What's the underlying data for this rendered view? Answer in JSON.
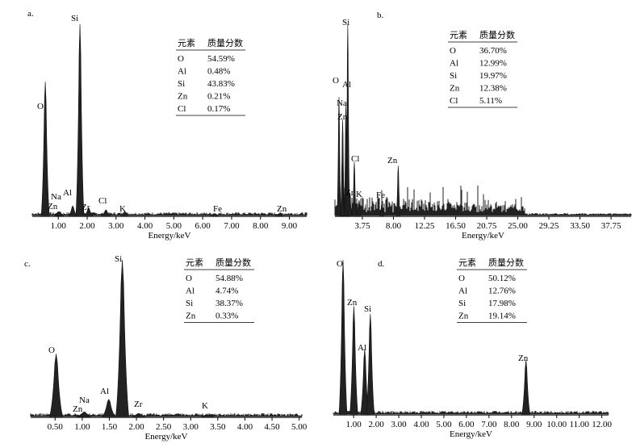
{
  "chart_data": [
    {
      "type": "line",
      "panel": "a.",
      "xlabel": "Energy/keV",
      "x_ticks": [
        "1.00",
        "2.00",
        "3.00",
        "4.00",
        "5.00",
        "6.00",
        "7.00",
        "8.00",
        "9.00"
      ],
      "tick_values": [
        1,
        2,
        3,
        4,
        5,
        6,
        7,
        8,
        9
      ],
      "xlim": [
        0.1,
        9.6
      ],
      "grid": false,
      "legend": "none",
      "peaks": [
        {
          "label": "O",
          "x": 0.55,
          "height": 0.7
        },
        {
          "label": "Zn",
          "x": 1.0,
          "height": 0.02
        },
        {
          "label": "Na",
          "x": 1.05,
          "height": 0.02
        },
        {
          "label": "Al",
          "x": 1.5,
          "height": 0.05
        },
        {
          "label": "Si",
          "x": 1.75,
          "height": 1.0
        },
        {
          "label": "Zr",
          "x": 2.05,
          "height": 0.04
        },
        {
          "label": "Cl",
          "x": 2.65,
          "height": 0.03
        },
        {
          "label": "K",
          "x": 3.3,
          "height": 0.02
        },
        {
          "label": "Fe",
          "x": 6.4,
          "height": 0.01
        },
        {
          "label": "Zn",
          "x": 8.65,
          "height": 0.01
        }
      ],
      "table": {
        "headers": [
          "元素",
          "质量分数"
        ],
        "rows": [
          [
            "O",
            "54.59%"
          ],
          [
            "Al",
            "0.48%"
          ],
          [
            "Si",
            "43.83%"
          ],
          [
            "Zn",
            "0.21%"
          ],
          [
            "Cl",
            "0.17%"
          ]
        ]
      }
    },
    {
      "type": "line",
      "panel": "b.",
      "xlabel": "Energy/keV",
      "x_ticks": [
        "3.75",
        "8.00",
        "12.25",
        "16.50",
        "20.75",
        "25.00",
        "29.25",
        "33.50",
        "37.75"
      ],
      "tick_values": [
        3.75,
        8.0,
        12.25,
        16.5,
        20.75,
        25.0,
        29.25,
        33.5,
        37.75
      ],
      "xlim": [
        0.0,
        40.5
      ],
      "grid": false,
      "legend": "none",
      "peaks": [
        {
          "label": "O",
          "x": 0.55,
          "height": 0.62
        },
        {
          "label": "Na",
          "x": 1.05,
          "height": 0.5
        },
        {
          "label": "Zn",
          "x": 1.0,
          "height": 0.3
        },
        {
          "label": "Al",
          "x": 1.5,
          "height": 0.58
        },
        {
          "label": "Si",
          "x": 1.75,
          "height": 1.0
        },
        {
          "label": "Cl",
          "x": 2.65,
          "height": 0.28
        },
        {
          "label": "Zr",
          "x": 2.05,
          "height": 0.12
        },
        {
          "label": "K",
          "x": 3.3,
          "height": 0.08
        },
        {
          "label": "Fe",
          "x": 6.4,
          "height": 0.06
        },
        {
          "label": "Zn",
          "x": 8.65,
          "height": 0.26
        }
      ],
      "table": {
        "headers": [
          "元素",
          "质量分数"
        ],
        "rows": [
          [
            "O",
            "36.70%"
          ],
          [
            "Al",
            "12.99%"
          ],
          [
            "Si",
            "19.97%"
          ],
          [
            "Zn",
            "12.38%"
          ],
          [
            "Cl",
            "5.11%"
          ]
        ]
      }
    },
    {
      "type": "line",
      "panel": "c.",
      "xlabel": "Energy/keV",
      "x_ticks": [
        "0.50",
        "1.00",
        "1.50",
        "2.00",
        "2.50",
        "3.00",
        "3.50",
        "4.00",
        "4.50",
        "5.00"
      ],
      "tick_values": [
        0.5,
        1.0,
        1.5,
        2.0,
        2.5,
        3.0,
        3.5,
        4.0,
        4.5,
        5.0
      ],
      "xlim": [
        0.05,
        5.05
      ],
      "grid": false,
      "legend": "none",
      "peaks": [
        {
          "label": "O",
          "x": 0.52,
          "height": 0.4
        },
        {
          "label": "Zn",
          "x": 1.01,
          "height": 0.02
        },
        {
          "label": "Na",
          "x": 1.04,
          "height": 0.03
        },
        {
          "label": "Al",
          "x": 1.49,
          "height": 0.11
        },
        {
          "label": "Si",
          "x": 1.74,
          "height": 1.0
        },
        {
          "label": "Zr",
          "x": 2.04,
          "height": 0.02
        },
        {
          "label": "K",
          "x": 3.31,
          "height": 0.01
        }
      ],
      "table": {
        "headers": [
          "元素",
          "质量分数"
        ],
        "rows": [
          [
            "O",
            "54.88%"
          ],
          [
            "Al",
            "4.74%"
          ],
          [
            "Si",
            "38.37%"
          ],
          [
            "Zn",
            "0.33%"
          ]
        ]
      }
    },
    {
      "type": "line",
      "panel": "d.",
      "xlabel": "Energy/keV",
      "x_ticks": [
        "1.00",
        "2.00",
        "3.00",
        "4.00",
        "5.00",
        "6.00",
        "7.00",
        "8.00",
        "9.00",
        "10.00",
        "11.00",
        "12.00"
      ],
      "tick_values": [
        1,
        2,
        3,
        4,
        5,
        6,
        7,
        8,
        9,
        10,
        11,
        12
      ],
      "xlim": [
        0.1,
        12.3
      ],
      "grid": false,
      "legend": "none",
      "peaks": [
        {
          "label": "O",
          "x": 0.53,
          "height": 1.0
        },
        {
          "label": "Zn",
          "x": 1.01,
          "height": 0.7
        },
        {
          "label": "Al",
          "x": 1.49,
          "height": 0.42
        },
        {
          "label": "Si",
          "x": 1.74,
          "height": 0.65
        },
        {
          "label": "Zn",
          "x": 8.64,
          "height": 0.35
        }
      ],
      "table": {
        "headers": [
          "元素",
          "质量分数"
        ],
        "rows": [
          [
            "O",
            "50.12%"
          ],
          [
            "Al",
            "12.76%"
          ],
          [
            "Si",
            "17.98%"
          ],
          [
            "Zn",
            "19.14%"
          ]
        ]
      }
    }
  ]
}
